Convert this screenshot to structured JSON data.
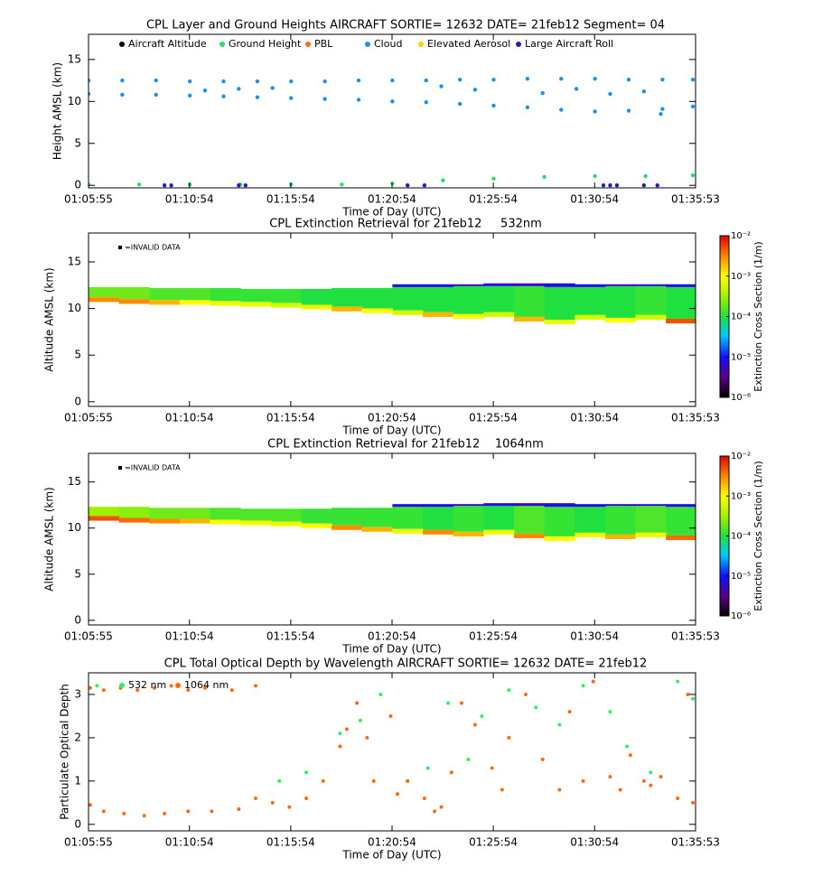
{
  "chart_data": [
    {
      "type": "scatter",
      "title": "CPL Layer and Ground Heights AIRCRAFT SORTIE= 12632 DATE= 21feb12 Segment= 04",
      "x_label": "Time of Day (UTC)",
      "y_label": "Height AMSL (km)",
      "xlim": [
        3955,
        5753
      ],
      "xticks": [
        {
          "value": 3955,
          "label": "01:05:55"
        },
        {
          "value": 4254,
          "label": "01:10:54"
        },
        {
          "value": 4554,
          "label": "01:15:54"
        },
        {
          "value": 4854,
          "label": "01:20:54"
        },
        {
          "value": 5154,
          "label": "01:25:54"
        },
        {
          "value": 5454,
          "label": "01:30:54"
        },
        {
          "value": 5753,
          "label": "01:35:53"
        }
      ],
      "ylim": [
        -0.3,
        18
      ],
      "yticks": [
        0,
        5,
        10,
        15
      ],
      "series": [
        {
          "name": "Aircraft Altitude",
          "color": "#000000",
          "x": [],
          "values": []
        },
        {
          "name": "Ground Height",
          "color": "#22e06a",
          "x": [
            3955,
            4105,
            4255,
            4405,
            4555,
            4705,
            4855,
            5005,
            5155,
            5305,
            5455,
            5605,
            5745
          ],
          "values": [
            0.1,
            0.1,
            0.1,
            0.1,
            0.1,
            0.1,
            0.2,
            0.6,
            0.8,
            1.0,
            1.1,
            1.1,
            1.2
          ]
        },
        {
          "name": "PBL",
          "color": "#ff6a10",
          "x": [],
          "values": []
        },
        {
          "name": "Cloud",
          "color": "#1e90f0",
          "x": [
            3955,
            4055,
            4155,
            4255,
            4355,
            4455,
            4555,
            4655,
            4755,
            4855,
            4955,
            5055,
            5155,
            5255,
            5355,
            5455,
            5555,
            5655,
            5745,
            3955,
            4055,
            4155,
            4255,
            4355,
            4455,
            4555,
            4655,
            4755,
            4855,
            4955,
            5055,
            5155,
            5255,
            5355,
            5455,
            5555,
            5655,
            5745,
            4300,
            4400,
            4500,
            5000,
            5100,
            5300,
            5400,
            5500,
            5600,
            5650
          ],
          "values": [
            12.5,
            12.5,
            12.5,
            12.4,
            12.4,
            12.4,
            12.4,
            12.4,
            12.5,
            12.5,
            12.5,
            12.6,
            12.6,
            12.7,
            12.7,
            12.7,
            12.6,
            12.6,
            12.6,
            10.9,
            10.8,
            10.8,
            10.7,
            10.6,
            10.5,
            10.4,
            10.3,
            10.2,
            10.0,
            9.9,
            9.7,
            9.5,
            9.3,
            9.0,
            8.8,
            8.9,
            9.1,
            9.4,
            11.3,
            11.5,
            11.6,
            11.8,
            11.4,
            11.0,
            11.5,
            10.9,
            11.2,
            8.5
          ]
        },
        {
          "name": "Elevated Aerosol",
          "color": "#ffd000",
          "x": [],
          "values": []
        },
        {
          "name": "Large Aircraft Roll",
          "color": "#2020c0",
          "x": [
            4180,
            4200,
            4400,
            4420,
            4900,
            4950,
            5480,
            5500,
            5520,
            5600,
            5640
          ],
          "values": [
            0,
            0,
            0,
            0,
            0,
            0,
            0,
            0,
            0,
            0,
            0
          ]
        }
      ]
    },
    {
      "type": "curtain",
      "title": "CPL Extinction Retrieval for 21feb12     532nm",
      "x_label": "Time of Day (UTC)",
      "y_label": "Altitude AMSL (km)",
      "colorbar_label": "Extinction Cross Section (1/m)",
      "invalid_label": "=INVALID DATA",
      "xlim": [
        3955,
        5753
      ],
      "xticks": [
        {
          "value": 3955,
          "label": "01:05:55"
        },
        {
          "value": 4254,
          "label": "01:10:54"
        },
        {
          "value": 4554,
          "label": "01:15:54"
        },
        {
          "value": 4854,
          "label": "01:20:54"
        },
        {
          "value": 5154,
          "label": "01:25:54"
        },
        {
          "value": 5454,
          "label": "01:30:54"
        },
        {
          "value": 5753,
          "label": "01:35:53"
        }
      ],
      "ylim": [
        -0.5,
        18.1
      ],
      "yticks": [
        0,
        5,
        10,
        15
      ],
      "colorscale": "log",
      "clim": [
        1e-06,
        0.01
      ],
      "cticks": [
        {
          "value": 1e-06,
          "label": "10⁻⁶"
        },
        {
          "value": 1e-05,
          "label": "10⁻⁵"
        },
        {
          "value": 0.0001,
          "label": "10⁻⁴"
        },
        {
          "value": 0.001,
          "label": "10⁻³"
        },
        {
          "value": 0.01,
          "label": "10⁻²"
        }
      ],
      "x": [
        3955,
        4045,
        4135,
        4225,
        4315,
        4405,
        4495,
        4585,
        4675,
        4765,
        4855,
        4945,
        5035,
        5125,
        5215,
        5305,
        5395,
        5485,
        5575,
        5665
      ],
      "layers": [
        {
          "top": [
            12.3,
            12.3,
            12.2,
            12.2,
            12.2,
            12.1,
            12.1,
            12.1,
            12.2,
            12.2,
            12.3,
            12.3,
            12.4,
            12.4,
            12.4,
            12.3,
            12.3,
            12.4,
            12.4,
            12.3
          ],
          "base": [
            11.2,
            11.0,
            10.9,
            10.9,
            10.8,
            10.7,
            10.6,
            10.4,
            10.2,
            10.0,
            9.8,
            9.6,
            9.4,
            9.6,
            9.1,
            8.8,
            9.3,
            9.0,
            9.3,
            8.9
          ],
          "values": [
            0.0002,
            0.0002,
            0.00015,
            0.00015,
            0.00012,
            0.00012,
            0.00012,
            0.0001,
            0.0001,
            0.0001,
            0.0001,
            0.0001,
            0.0001,
            0.0001,
            0.00012,
            0.0001,
            0.0001,
            0.0001,
            0.00012,
            0.0001
          ]
        },
        {
          "top": [
            11.2,
            11.0,
            10.9,
            10.9,
            10.8,
            10.7,
            10.6,
            10.4,
            10.2,
            10.0,
            9.8,
            9.6,
            9.4,
            9.6,
            9.1,
            8.8,
            9.3,
            9.0,
            9.3,
            8.9
          ],
          "base": [
            10.7,
            10.5,
            10.4,
            10.4,
            10.3,
            10.2,
            10.1,
            9.9,
            9.7,
            9.5,
            9.3,
            9.1,
            8.9,
            9.1,
            8.6,
            8.3,
            8.8,
            8.5,
            8.8,
            8.4
          ],
          "values": [
            0.003,
            0.003,
            0.002,
            0.001,
            0.0008,
            0.0008,
            0.0006,
            0.0008,
            0.002,
            0.001,
            0.0006,
            0.002,
            0.001,
            0.0006,
            0.002,
            0.0008,
            0.0006,
            0.001,
            0.0006,
            0.005
          ]
        },
        {
          "top": [
            null,
            null,
            null,
            null,
            null,
            null,
            null,
            null,
            null,
            null,
            12.6,
            12.6,
            12.6,
            12.7,
            12.7,
            12.7,
            12.6,
            12.6,
            12.6,
            12.6
          ],
          "base": [
            null,
            null,
            null,
            null,
            null,
            null,
            null,
            null,
            null,
            null,
            12.3,
            12.3,
            12.4,
            12.4,
            12.4,
            12.3,
            12.3,
            12.4,
            12.4,
            12.3
          ],
          "values": [
            null,
            null,
            null,
            null,
            null,
            null,
            null,
            null,
            null,
            null,
            8e-06,
            8e-06,
            6e-06,
            8e-06,
            6e-06,
            8e-06,
            8e-06,
            6e-06,
            8e-06,
            8e-06
          ]
        }
      ]
    },
    {
      "type": "curtain",
      "title": "CPL Extinction Retrieval for 21feb12    1064nm",
      "x_label": "Time of Day (UTC)",
      "y_label": "Altitude AMSL (km)",
      "colorbar_label": "Extinction Cross Section (1/m)",
      "invalid_label": "=INVALID DATA",
      "xlim": [
        3955,
        5753
      ],
      "xticks": [
        {
          "value": 3955,
          "label": "01:05:55"
        },
        {
          "value": 4254,
          "label": "01:10:54"
        },
        {
          "value": 4554,
          "label": "01:15:54"
        },
        {
          "value": 4854,
          "label": "01:20:54"
        },
        {
          "value": 5154,
          "label": "01:25:54"
        },
        {
          "value": 5454,
          "label": "01:30:54"
        },
        {
          "value": 5753,
          "label": "01:35:53"
        }
      ],
      "ylim": [
        -0.5,
        18.1
      ],
      "yticks": [
        0,
        5,
        10,
        15
      ],
      "colorscale": "log",
      "clim": [
        1e-06,
        0.01
      ],
      "cticks": [
        {
          "value": 1e-06,
          "label": "10⁻⁶"
        },
        {
          "value": 1e-05,
          "label": "10⁻⁵"
        },
        {
          "value": 0.0001,
          "label": "10⁻⁴"
        },
        {
          "value": 0.001,
          "label": "10⁻³"
        },
        {
          "value": 0.01,
          "label": "10⁻²"
        }
      ],
      "x": [
        3955,
        4045,
        4135,
        4225,
        4315,
        4405,
        4495,
        4585,
        4675,
        4765,
        4855,
        4945,
        5035,
        5125,
        5215,
        5305,
        5395,
        5485,
        5575,
        5665
      ],
      "layers": [
        {
          "top": [
            12.3,
            12.3,
            12.2,
            12.2,
            12.2,
            12.1,
            12.1,
            12.1,
            12.2,
            12.2,
            12.3,
            12.3,
            12.4,
            12.4,
            12.4,
            12.3,
            12.3,
            12.4,
            12.4,
            12.3
          ],
          "base": [
            11.3,
            11.1,
            11.0,
            11.0,
            10.9,
            10.8,
            10.7,
            10.5,
            10.3,
            10.1,
            9.9,
            9.8,
            9.6,
            9.8,
            9.4,
            9.1,
            9.5,
            9.3,
            9.5,
            9.2
          ],
          "values": [
            0.0003,
            0.00025,
            0.0002,
            0.0002,
            0.00015,
            0.00015,
            0.00015,
            0.00012,
            0.00012,
            0.00012,
            0.00012,
            0.0001,
            0.00012,
            0.0001,
            0.00015,
            0.00012,
            0.0001,
            0.00012,
            0.00015,
            0.00012
          ]
        },
        {
          "top": [
            11.3,
            11.1,
            11.0,
            11.0,
            10.9,
            10.8,
            10.7,
            10.5,
            10.3,
            10.1,
            9.9,
            9.8,
            9.6,
            9.8,
            9.4,
            9.1,
            9.5,
            9.3,
            9.5,
            9.2
          ],
          "base": [
            10.8,
            10.6,
            10.5,
            10.5,
            10.4,
            10.3,
            10.2,
            10.0,
            9.8,
            9.6,
            9.4,
            9.3,
            9.1,
            9.3,
            8.9,
            8.6,
            9.0,
            8.8,
            9.0,
            8.7
          ],
          "values": [
            0.005,
            0.004,
            0.003,
            0.002,
            0.001,
            0.001,
            0.0008,
            0.001,
            0.003,
            0.002,
            0.0008,
            0.003,
            0.002,
            0.0008,
            0.003,
            0.001,
            0.0008,
            0.002,
            0.0008,
            0.004
          ]
        },
        {
          "top": [
            null,
            null,
            null,
            null,
            null,
            null,
            null,
            null,
            null,
            null,
            12.6,
            12.6,
            12.6,
            12.7,
            12.7,
            12.7,
            12.6,
            12.6,
            12.6,
            12.6
          ],
          "base": [
            null,
            null,
            null,
            null,
            null,
            null,
            null,
            null,
            null,
            null,
            12.3,
            12.3,
            12.4,
            12.4,
            12.4,
            12.3,
            12.3,
            12.4,
            12.4,
            12.3
          ],
          "values": [
            null,
            null,
            null,
            null,
            null,
            null,
            null,
            null,
            null,
            null,
            8e-06,
            8e-06,
            6e-06,
            8e-06,
            6e-06,
            8e-06,
            8e-06,
            6e-06,
            8e-06,
            8e-06
          ]
        }
      ]
    },
    {
      "type": "scatter",
      "title": "CPL Total Optical Depth by Wavelength AIRCRAFT SORTIE= 12632 DATE= 21feb12",
      "x_label": "Time of Day (UTC)",
      "y_label": "Particulate Optical Depth",
      "xlim": [
        3955,
        5753
      ],
      "xticks": [
        {
          "value": 3955,
          "label": "01:05:55"
        },
        {
          "value": 4254,
          "label": "01:10:54"
        },
        {
          "value": 4554,
          "label": "01:15:54"
        },
        {
          "value": 4854,
          "label": "01:20:54"
        },
        {
          "value": 5154,
          "label": "01:25:54"
        },
        {
          "value": 5454,
          "label": "01:30:54"
        },
        {
          "value": 5753,
          "label": "01:35:53"
        }
      ],
      "ylim": [
        -0.15,
        3.5
      ],
      "yticks": [
        0,
        1,
        2,
        3
      ],
      "series": [
        {
          "name": "532 nm",
          "color": "#33ee66",
          "x": [
            3980,
            4520,
            4600,
            4700,
            4760,
            4820,
            4900,
            4960,
            5020,
            5080,
            5120,
            5200,
            5280,
            5350,
            5420,
            5500,
            5550,
            5620,
            5700,
            5745
          ],
          "values": [
            3.2,
            1.0,
            1.2,
            2.1,
            2.4,
            3.0,
            1.0,
            1.3,
            2.8,
            1.5,
            2.5,
            3.1,
            2.7,
            2.3,
            3.2,
            2.6,
            1.8,
            1.2,
            3.3,
            2.9
          ]
        },
        {
          "name": "1064 nm",
          "color": "#ff6a10",
          "x": [
            3960,
            4000,
            4050,
            4100,
            4150,
            4200,
            4250,
            4300,
            4380,
            4450,
            3960,
            4000,
            4060,
            4120,
            4180,
            4250,
            4320,
            4400,
            4450,
            4500,
            4550,
            4600,
            4650,
            4700,
            4720,
            4750,
            4780,
            4800,
            4850,
            4870,
            4900,
            4950,
            4980,
            5000,
            5030,
            5060,
            5100,
            5150,
            5180,
            5200,
            5250,
            5300,
            5350,
            5380,
            5420,
            5450,
            5500,
            5530,
            5560,
            5600,
            5620,
            5650,
            5700,
            5730,
            5745
          ],
          "values": [
            3.15,
            3.1,
            3.15,
            3.1,
            3.15,
            3.2,
            3.1,
            3.15,
            3.1,
            3.2,
            0.45,
            0.3,
            0.25,
            0.2,
            0.25,
            0.3,
            0.3,
            0.35,
            0.6,
            0.5,
            0.4,
            0.6,
            1.0,
            1.8,
            2.2,
            2.8,
            2.0,
            1.0,
            2.5,
            0.7,
            1.0,
            0.6,
            0.3,
            0.4,
            1.2,
            2.8,
            2.3,
            1.3,
            0.8,
            2.0,
            3.0,
            1.5,
            0.8,
            2.6,
            1.0,
            3.3,
            1.1,
            0.8,
            1.6,
            1.0,
            0.9,
            1.1,
            0.6,
            3.0,
            0.5
          ]
        }
      ]
    }
  ]
}
